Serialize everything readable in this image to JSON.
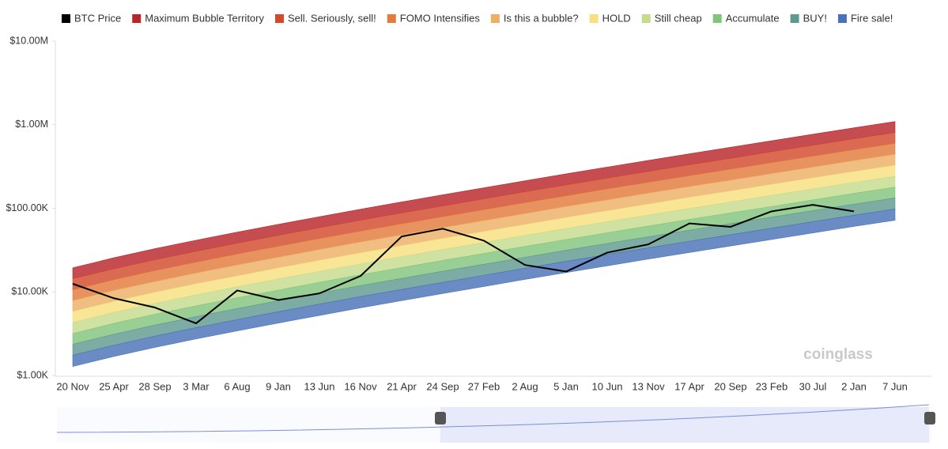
{
  "chart_data": {
    "type": "rainbow",
    "watermark": "coinglass",
    "log_scale": true,
    "categories": [
      "20 Nov",
      "25 Apr",
      "28 Sep",
      "3 Mar",
      "6 Aug",
      "9 Jan",
      "13 Jun",
      "16 Nov",
      "21 Apr",
      "24 Sep",
      "27 Feb",
      "2 Aug",
      "5 Jan",
      "10 Jun",
      "13 Nov",
      "17 Apr",
      "20 Sep",
      "23 Feb",
      "30 Jul",
      "2 Jan",
      "7 Jun"
    ],
    "ylim": [
      1000,
      10000000
    ],
    "yticks": [
      {
        "value": 1000,
        "label": "$1.00K"
      },
      {
        "value": 10000,
        "label": "$10.00K"
      },
      {
        "value": 100000,
        "label": "$100.00K"
      },
      {
        "value": 1000000,
        "label": "$1.00M"
      },
      {
        "value": 10000000,
        "label": "$10.00M"
      }
    ],
    "series": [
      {
        "name": "BTC Price",
        "color": "#000000",
        "values": [
          12500,
          8400,
          6500,
          4200,
          10400,
          8000,
          9600,
          15500,
          46000,
          57000,
          41000,
          21000,
          17500,
          29500,
          37000,
          66000,
          60000,
          92000,
          110000,
          92000,
          null
        ]
      },
      {
        "name": "Maximum Bubble Territory",
        "color": "#b8262b",
        "values": [
          19400,
          25600,
          32900,
          41500,
          51800,
          64300,
          79300,
          97500,
          119100,
          144900,
          175800,
          213300,
          258200,
          311200,
          374100,
          448700,
          537000,
          642700,
          769100,
          918300,
          1091000
        ]
      },
      {
        "name": "Sell. Seriously, sell!",
        "color": "#d2492c",
        "values": [
          14400,
          18900,
          24300,
          30700,
          38300,
          47600,
          58700,
          72200,
          88100,
          107000,
          130000,
          158000,
          191000,
          230000,
          277000,
          332000,
          397000,
          476000,
          569000,
          680000,
          807000
        ]
      },
      {
        "name": "FOMO Intensifies",
        "color": "#e37b3c",
        "values": [
          10600,
          14000,
          18000,
          22700,
          28400,
          35200,
          43500,
          53400,
          65300,
          79400,
          96300,
          117000,
          141000,
          171000,
          205000,
          246000,
          294000,
          352000,
          421000,
          503000,
          598000
        ]
      },
      {
        "name": "Is this a bubble?",
        "color": "#ecb064",
        "values": [
          7860,
          10400,
          13300,
          16800,
          21000,
          26000,
          32100,
          39500,
          48200,
          58700,
          71200,
          86400,
          105000,
          126000,
          152000,
          182000,
          217000,
          260000,
          311000,
          372000,
          442000
        ]
      },
      {
        "name": "HOLD",
        "color": "#f7e07f",
        "values": [
          5820,
          7680,
          9870,
          12500,
          15500,
          19300,
          23800,
          29300,
          35700,
          43500,
          52700,
          64000,
          77500,
          93400,
          112000,
          135000,
          161000,
          193000,
          231000,
          275000,
          327000
        ]
      },
      {
        "name": "Still cheap",
        "color": "#c5dc8c",
        "values": [
          4310,
          5680,
          7300,
          9210,
          11500,
          14300,
          17600,
          21600,
          26400,
          32200,
          39000,
          47400,
          57300,
          69100,
          83100,
          99600,
          119000,
          143000,
          171000,
          204000,
          242000
        ]
      },
      {
        "name": "Accumulate",
        "color": "#82c47c",
        "values": [
          3180,
          4200,
          5400,
          6810,
          8500,
          10500,
          13000,
          16000,
          19500,
          23800,
          28800,
          35000,
          42300,
          51000,
          61400,
          73600,
          88100,
          105000,
          126000,
          151000,
          179000
        ]
      },
      {
        "name": "BUY!",
        "color": "#5f9a8f",
        "values": [
          2370,
          3120,
          4010,
          5060,
          6320,
          7840,
          9670,
          11900,
          14500,
          17700,
          21400,
          26000,
          31500,
          38000,
          45600,
          54700,
          65500,
          78400,
          93800,
          112000,
          133000
        ]
      },
      {
        "name": "Fire sale!",
        "color": "#4a72b8",
        "values": [
          1750,
          2300,
          2960,
          3740,
          4660,
          5790,
          7140,
          8780,
          10700,
          13000,
          15800,
          19200,
          23200,
          28000,
          33700,
          40400,
          48300,
          57800,
          69200,
          82600,
          98200
        ],
        "lower": [
          1280,
          1690,
          2170,
          2740,
          3420,
          4240,
          5230,
          6440,
          7860,
          9560,
          11600,
          14100,
          17000,
          20500,
          24700,
          29600,
          35400,
          42400,
          50700,
          60600,
          72000
        ]
      }
    ]
  }
}
